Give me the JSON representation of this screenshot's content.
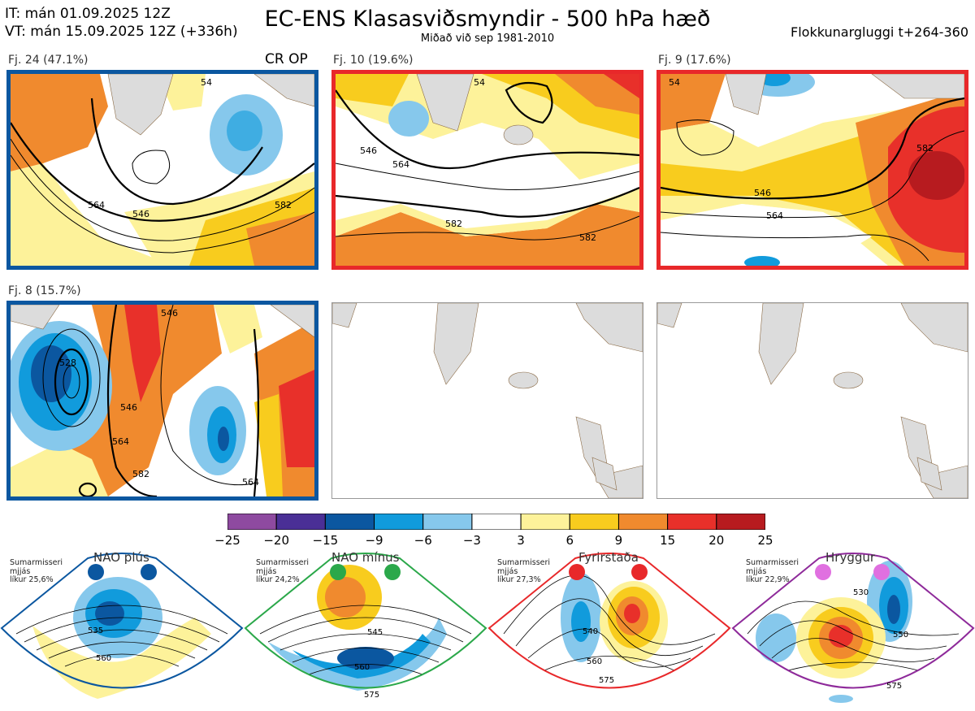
{
  "header": {
    "it_line": "IT: mán 01.09.2025 12Z",
    "vt_line": "VT: mán 15.09.2025 12Z  (+336h)",
    "title": "EC-ENS Klasasviðsmyndir - 500 hPa hæð",
    "subtitle": "Miðað við sep 1981-2010",
    "window": "Flokkunargluggi t+264-360"
  },
  "clusters": [
    {
      "label": "Fj. 24 (47.1%)",
      "tag": "CR OP",
      "border_color": "#0b57a0",
      "contours": [
        "546",
        "564",
        "582",
        "54"
      ]
    },
    {
      "label": "Fj. 10 (19.6%)",
      "tag": "",
      "border_color": "#e8282a",
      "contours": [
        "546",
        "564",
        "582",
        "54"
      ]
    },
    {
      "label": "Fj. 9 (17.6%)",
      "tag": "",
      "border_color": "#e8282a",
      "contours": [
        "546",
        "564",
        "582",
        "54"
      ]
    },
    {
      "label": "Fj. 8 (15.7%)",
      "tag": "",
      "border_color": "#0b57a0",
      "contours": [
        "546",
        "564",
        "582",
        "528"
      ]
    }
  ],
  "colorbar": {
    "ticks": [
      "−25",
      "−20",
      "−15",
      "−9",
      "−6",
      "−3",
      "3",
      "6",
      "9",
      "15",
      "20",
      "25"
    ],
    "colors": [
      "#8e4aa0",
      "#4a2f96",
      "#0b57a0",
      "#119bdc",
      "#86c8ec",
      "#ffffff",
      "#fdf29a",
      "#f8cc1e",
      "#f08a2e",
      "#e8302a",
      "#b71b1f"
    ]
  },
  "regimes": [
    {
      "title": "NAO plús",
      "note": [
        "Sumarmisseri",
        "mjjás",
        "líkur 25,6%"
      ],
      "color": "#0b57a0",
      "contours": [
        "535",
        "560"
      ]
    },
    {
      "title": "NAO mínus",
      "note": [
        "Sumarmisseri",
        "mjjás",
        "líkur 24,2%"
      ],
      "color": "#2ba84a",
      "contours": [
        "545",
        "560",
        "575"
      ]
    },
    {
      "title": "Fyrirstaða",
      "note": [
        "Sumarmisseri",
        "mjjás",
        "líkur 27,3%"
      ],
      "color": "#e8282a",
      "contours": [
        "540",
        "560",
        "575"
      ]
    },
    {
      "title": "Hryggur",
      "note": [
        "Sumarmisseri",
        "mjjás",
        "líkur 22,9%"
      ],
      "color": "#e070e0",
      "contours": [
        "530",
        "550",
        "575"
      ]
    }
  ]
}
